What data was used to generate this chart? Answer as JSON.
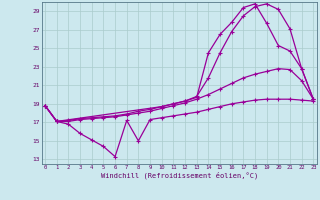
{
  "background_color": "#cce8ee",
  "line_color": "#990099",
  "grid_color": "#aacccc",
  "ylabel_ticks": [
    13,
    15,
    17,
    19,
    21,
    23,
    25,
    27,
    29
  ],
  "xlabel_ticks": [
    0,
    1,
    2,
    3,
    4,
    5,
    6,
    7,
    8,
    9,
    10,
    11,
    12,
    13,
    14,
    15,
    16,
    17,
    18,
    19,
    20,
    21,
    22,
    23
  ],
  "xlabel": "Windchill (Refroidissement éolien,°C)",
  "xlim": [
    -0.3,
    23.3
  ],
  "ylim": [
    12.5,
    30.0
  ],
  "line1_x": [
    0,
    1,
    2,
    3,
    4,
    5,
    6,
    7,
    8,
    9,
    10,
    11,
    12,
    13,
    14,
    15,
    16,
    17,
    18,
    19,
    20,
    21,
    22,
    23
  ],
  "line1_y": [
    18.8,
    17.1,
    16.8,
    15.8,
    15.1,
    14.4,
    13.3,
    17.2,
    15.0,
    17.3,
    17.5,
    17.7,
    17.9,
    18.1,
    18.4,
    18.7,
    19.0,
    19.2,
    19.4,
    19.5,
    19.5,
    19.5,
    19.4,
    19.3
  ],
  "line2_x": [
    0,
    1,
    2,
    3,
    4,
    5,
    6,
    7,
    8,
    9,
    10,
    11,
    12,
    13,
    14,
    15,
    16,
    17,
    18,
    19,
    20,
    21,
    22,
    23
  ],
  "line2_y": [
    18.8,
    17.1,
    17.1,
    17.3,
    17.4,
    17.5,
    17.6,
    17.8,
    18.0,
    18.2,
    18.5,
    18.8,
    19.1,
    19.5,
    20.0,
    20.6,
    21.2,
    21.8,
    22.2,
    22.5,
    22.8,
    22.7,
    21.5,
    19.5
  ],
  "line3_x": [
    0,
    1,
    2,
    3,
    4,
    5,
    6,
    7,
    8,
    9,
    10,
    11,
    12,
    13,
    14,
    15,
    16,
    17,
    18,
    19,
    20,
    21,
    22,
    23
  ],
  "line3_y": [
    18.8,
    17.1,
    17.2,
    17.4,
    17.5,
    17.6,
    17.7,
    17.9,
    18.2,
    18.4,
    18.7,
    19.0,
    19.3,
    19.8,
    21.8,
    24.5,
    26.8,
    28.5,
    29.5,
    29.8,
    29.2,
    27.1,
    22.8,
    19.5
  ],
  "line4_x": [
    0,
    1,
    10,
    11,
    12,
    13,
    14,
    15,
    16,
    17,
    18,
    19,
    20,
    21,
    22,
    23
  ],
  "line4_y": [
    18.8,
    17.1,
    18.7,
    19.0,
    19.3,
    19.7,
    24.5,
    26.5,
    27.8,
    29.4,
    29.8,
    27.7,
    25.3,
    24.7,
    22.8,
    19.5
  ],
  "markersize": 2.5,
  "linewidth": 0.9
}
